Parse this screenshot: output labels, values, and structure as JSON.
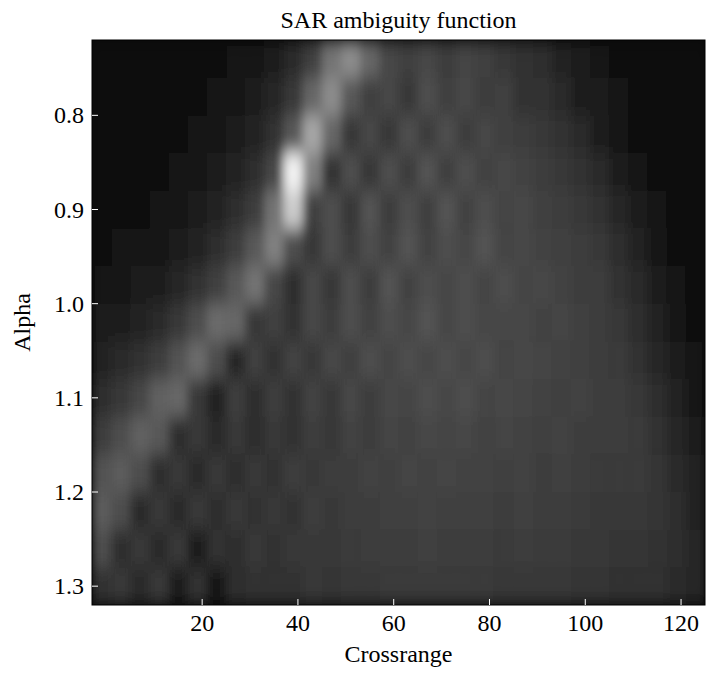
{
  "chart_data": {
    "type": "heatmap",
    "title": "SAR ambiguity function",
    "x_label": "Crossrange",
    "y_label": "Alpha",
    "x": [
      -1,
      3,
      7,
      11,
      15,
      19,
      23,
      27,
      31,
      35,
      39,
      43,
      47,
      51,
      55,
      59,
      63,
      67,
      71,
      75,
      79,
      83,
      87,
      91,
      95,
      99,
      103,
      107,
      111,
      115,
      119,
      123
    ],
    "y": [
      0.74,
      0.78,
      0.82,
      0.86,
      0.9,
      0.94,
      0.98,
      1.02,
      1.06,
      1.1,
      1.14,
      1.18,
      1.22,
      1.26,
      1.3
    ],
    "values": [
      [
        3,
        3,
        3,
        4,
        4,
        5,
        6,
        7,
        9,
        12,
        16,
        25,
        45,
        55,
        40,
        28,
        25,
        28,
        24,
        27,
        25,
        22,
        20,
        18,
        14,
        10,
        8,
        6,
        5,
        4,
        3,
        3
      ],
      [
        3,
        3,
        4,
        4,
        5,
        6,
        7,
        9,
        11,
        15,
        22,
        40,
        55,
        35,
        25,
        28,
        22,
        30,
        25,
        28,
        24,
        25,
        20,
        20,
        16,
        12,
        10,
        7,
        5,
        4,
        3,
        3
      ],
      [
        3,
        4,
        4,
        5,
        6,
        7,
        9,
        11,
        14,
        20,
        35,
        65,
        40,
        22,
        28,
        22,
        30,
        24,
        30,
        24,
        28,
        25,
        24,
        22,
        20,
        16,
        12,
        9,
        6,
        4,
        3,
        3
      ],
      [
        4,
        4,
        5,
        6,
        7,
        9,
        11,
        14,
        18,
        28,
        95,
        50,
        20,
        30,
        22,
        30,
        24,
        32,
        25,
        30,
        26,
        28,
        26,
        24,
        22,
        20,
        16,
        12,
        8,
        5,
        4,
        3
      ],
      [
        5,
        5,
        6,
        7,
        9,
        11,
        14,
        18,
        24,
        45,
        80,
        25,
        30,
        22,
        32,
        24,
        30,
        25,
        32,
        26,
        30,
        27,
        28,
        25,
        24,
        22,
        20,
        15,
        11,
        7,
        5,
        4
      ],
      [
        6,
        7,
        8,
        9,
        11,
        14,
        18,
        24,
        35,
        50,
        30,
        22,
        30,
        24,
        30,
        26,
        32,
        26,
        30,
        28,
        32,
        27,
        28,
        26,
        25,
        24,
        22,
        18,
        14,
        9,
        6,
        4
      ],
      [
        8,
        9,
        10,
        12,
        15,
        19,
        25,
        35,
        45,
        28,
        18,
        28,
        22,
        30,
        24,
        32,
        26,
        30,
        28,
        30,
        27,
        30,
        27,
        28,
        26,
        24,
        24,
        20,
        16,
        11,
        7,
        5
      ],
      [
        10,
        12,
        14,
        17,
        22,
        30,
        42,
        40,
        22,
        25,
        20,
        28,
        24,
        30,
        26,
        30,
        28,
        32,
        28,
        30,
        28,
        28,
        28,
        26,
        27,
        25,
        24,
        22,
        18,
        13,
        9,
        6
      ],
      [
        14,
        16,
        19,
        24,
        32,
        42,
        30,
        15,
        25,
        20,
        26,
        22,
        28,
        25,
        30,
        27,
        30,
        28,
        30,
        28,
        30,
        27,
        28,
        27,
        26,
        25,
        24,
        23,
        20,
        15,
        11,
        7
      ],
      [
        18,
        22,
        28,
        38,
        40,
        22,
        14,
        24,
        18,
        24,
        20,
        26,
        22,
        28,
        24,
        28,
        27,
        30,
        28,
        30,
        27,
        28,
        27,
        26,
        25,
        26,
        24,
        24,
        22,
        18,
        13,
        9
      ],
      [
        24,
        30,
        38,
        35,
        18,
        22,
        16,
        22,
        18,
        22,
        20,
        24,
        22,
        26,
        24,
        27,
        26,
        28,
        27,
        28,
        26,
        27,
        26,
        25,
        26,
        24,
        24,
        24,
        23,
        20,
        15,
        11
      ],
      [
        32,
        36,
        30,
        18,
        22,
        16,
        22,
        18,
        22,
        20,
        24,
        22,
        24,
        24,
        26,
        25,
        27,
        26,
        27,
        26,
        26,
        25,
        26,
        24,
        25,
        24,
        23,
        23,
        23,
        21,
        17,
        13
      ],
      [
        36,
        30,
        16,
        22,
        16,
        22,
        18,
        22,
        20,
        22,
        20,
        24,
        22,
        24,
        24,
        25,
        25,
        26,
        25,
        25,
        25,
        24,
        25,
        24,
        24,
        23,
        22,
        22,
        22,
        21,
        18,
        14
      ],
      [
        30,
        18,
        22,
        16,
        22,
        10,
        20,
        18,
        22,
        20,
        22,
        22,
        22,
        23,
        24,
        24,
        24,
        25,
        24,
        24,
        24,
        23,
        24,
        23,
        23,
        22,
        22,
        21,
        21,
        20,
        18,
        15
      ],
      [
        20,
        22,
        16,
        22,
        12,
        20,
        8,
        18,
        20,
        20,
        20,
        22,
        21,
        22,
        22,
        23,
        23,
        23,
        23,
        23,
        23,
        22,
        22,
        22,
        22,
        21,
        21,
        20,
        20,
        19,
        17,
        15
      ]
    ],
    "zlim": [
      0,
      100
    ],
    "xlim": [
      -3,
      125
    ],
    "xticks": [
      20,
      40,
      60,
      80,
      100,
      120
    ],
    "ylim": [
      1.32,
      0.72
    ],
    "yticks": [
      0.8,
      0.9,
      {
        "value": 1.0,
        "label": "1.0"
      },
      1.1,
      1.2,
      1.3
    ]
  }
}
